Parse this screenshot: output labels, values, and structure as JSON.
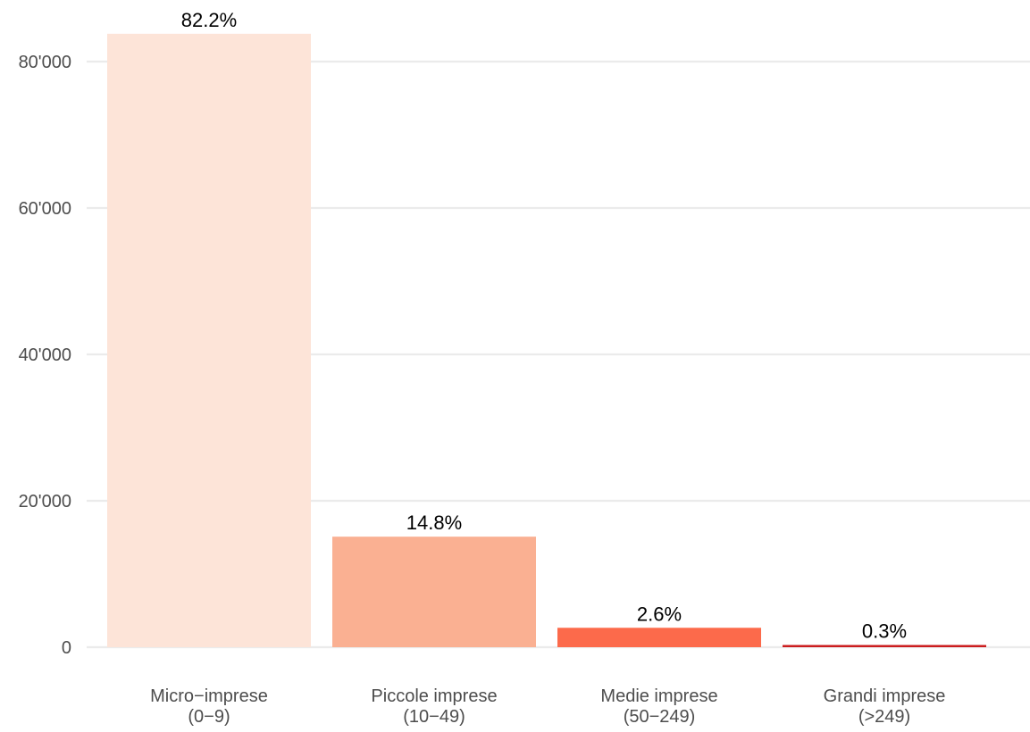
{
  "chart_data": {
    "type": "bar",
    "categories": [
      [
        "Micro−imprese",
        "(0−9)"
      ],
      [
        "Piccole imprese",
        "(10−49)"
      ],
      [
        "Medie imprese",
        "(50−249)"
      ],
      [
        "Grandi imprese",
        "(>249)"
      ]
    ],
    "values": [
      83800,
      15100,
      2650,
      300
    ],
    "data_labels": [
      "82.2%",
      "14.8%",
      "2.6%",
      "0.3%"
    ],
    "colors": [
      "#fde4d8",
      "#fab092",
      "#fc6a4b",
      "#cb1d1e"
    ],
    "yticks": [
      0,
      20000,
      40000,
      60000,
      80000
    ],
    "ytick_labels": [
      "0",
      "20'000",
      "40'000",
      "60'000",
      "80'000"
    ],
    "ylim": [
      0,
      85000
    ],
    "title": "",
    "xlabel": "",
    "ylabel": "",
    "grid": "horizontal",
    "legend": "none"
  }
}
